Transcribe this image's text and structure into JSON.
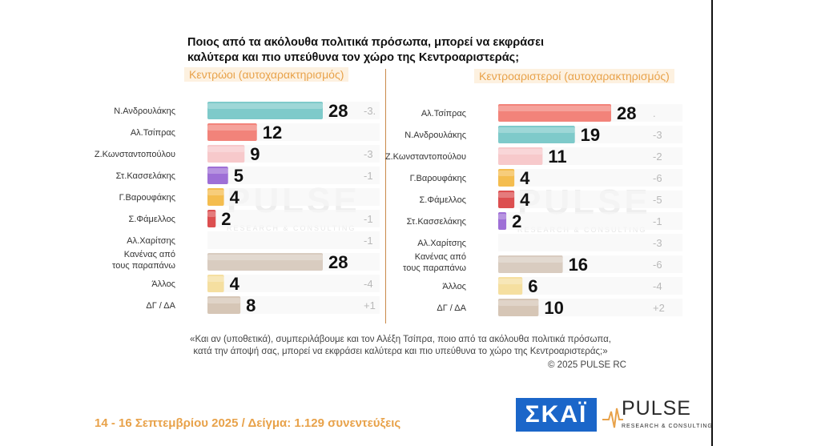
{
  "title_line1": "Ποιος από τα ακόλουθα πολιτικά πρόσωπα, μπορεί να εκφράσει",
  "title_line2": "καλύτερα και πιο υπεύθυνα τον χώρο της Κεντροαριστεράς;",
  "chart_data": [
    {
      "type": "bar",
      "subtitle": "Κεντρώοι (αυτοχαρακτηρισμός)",
      "categories": [
        "Ν.Ανδρουλάκης",
        "Αλ.Τσίπρας",
        "Ζ.Κωνσταντοπούλου",
        "Στ.Κασσελάκης",
        "Γ.Βαρουφάκης",
        "Σ.Φάμελλος",
        "Αλ.Χαρίτσης",
        "Κανένας από|τους παραπάνω",
        "Άλλος",
        "ΔΓ / ΔΑ"
      ],
      "values": [
        28,
        12,
        9,
        5,
        4,
        2,
        0,
        28,
        4,
        8
      ],
      "value_labels": [
        "28",
        "12",
        "9",
        "5",
        "4",
        "2",
        "",
        "28",
        "4",
        "8"
      ],
      "change_labels": [
        "-3.",
        "",
        "-3",
        "-1",
        "",
        "-1",
        "-1",
        "",
        "-4",
        "+1"
      ],
      "colors": [
        "#7ecaca",
        "#f2837a",
        "#f7c9cb",
        "#9e6fd6",
        "#f4bd4f",
        "#dc4f50",
        "#cccccc",
        "#d9ccc0",
        "#f5dfa0",
        "#d6c6b6"
      ]
    },
    {
      "type": "bar",
      "subtitle": "Κεντροαριστεροί (αυτοχαρακτηρισμός)",
      "categories": [
        "Αλ.Τσίπρας",
        "Ν.Ανδρουλάκης",
        "Ζ.Κωνσταντοπούλου",
        "Γ.Βαρουφάκης",
        "Σ.Φάμελλος",
        "Στ.Κασσελάκης",
        "Αλ.Χαρίτσης",
        "Κανένας από|τους παραπάνω",
        "Άλλος",
        "ΔΓ / ΔΑ"
      ],
      "values": [
        28,
        19,
        11,
        4,
        4,
        2,
        0,
        16,
        6,
        10
      ],
      "value_labels": [
        "28",
        "19",
        "11",
        "4",
        "4",
        "2",
        "",
        "16",
        "6",
        "10"
      ],
      "change_labels": [
        ".",
        "-3",
        "-2",
        "-6",
        "-5",
        "-1",
        "-3",
        "-6",
        "-4",
        "+2"
      ],
      "colors": [
        "#f2837a",
        "#7ecaca",
        "#f7c9cb",
        "#f4bd4f",
        "#dc4f50",
        "#9e6fd6",
        "#cccccc",
        "#d9ccc0",
        "#f5dfa0",
        "#d6c6b6"
      ]
    }
  ],
  "footnote_line1": "«Και αν (υποθετικά), συμπεριλάβουμε και τον Αλέξη Τσίπρα, ποιο από τα ακόλουθα πολιτικά πρόσωπα,",
  "footnote_line2": "κατά την άποψή σας, μπορεί να εκφράσει καλύτερα και πιο υπεύθυνα το χώρο της Κεντροαριστεράς;»",
  "copyright": "©  2025  PULSE RC",
  "date_sample": "14 - 16 Σεπτεμβρίου 2025  /  Δείγμα:  1.129 συνεντεύξεις",
  "logo_skai": "ΣΚΑΪ",
  "logo_pulse": "PULSE",
  "logo_pulse_sub": "RESEARCH & CONSULTING",
  "watermark": "PULSE",
  "watermark_sub": "RESEARCH & CONSULTING",
  "colors": {
    "accent": "#e8a24a",
    "skai_blue": "#1b66c9"
  }
}
